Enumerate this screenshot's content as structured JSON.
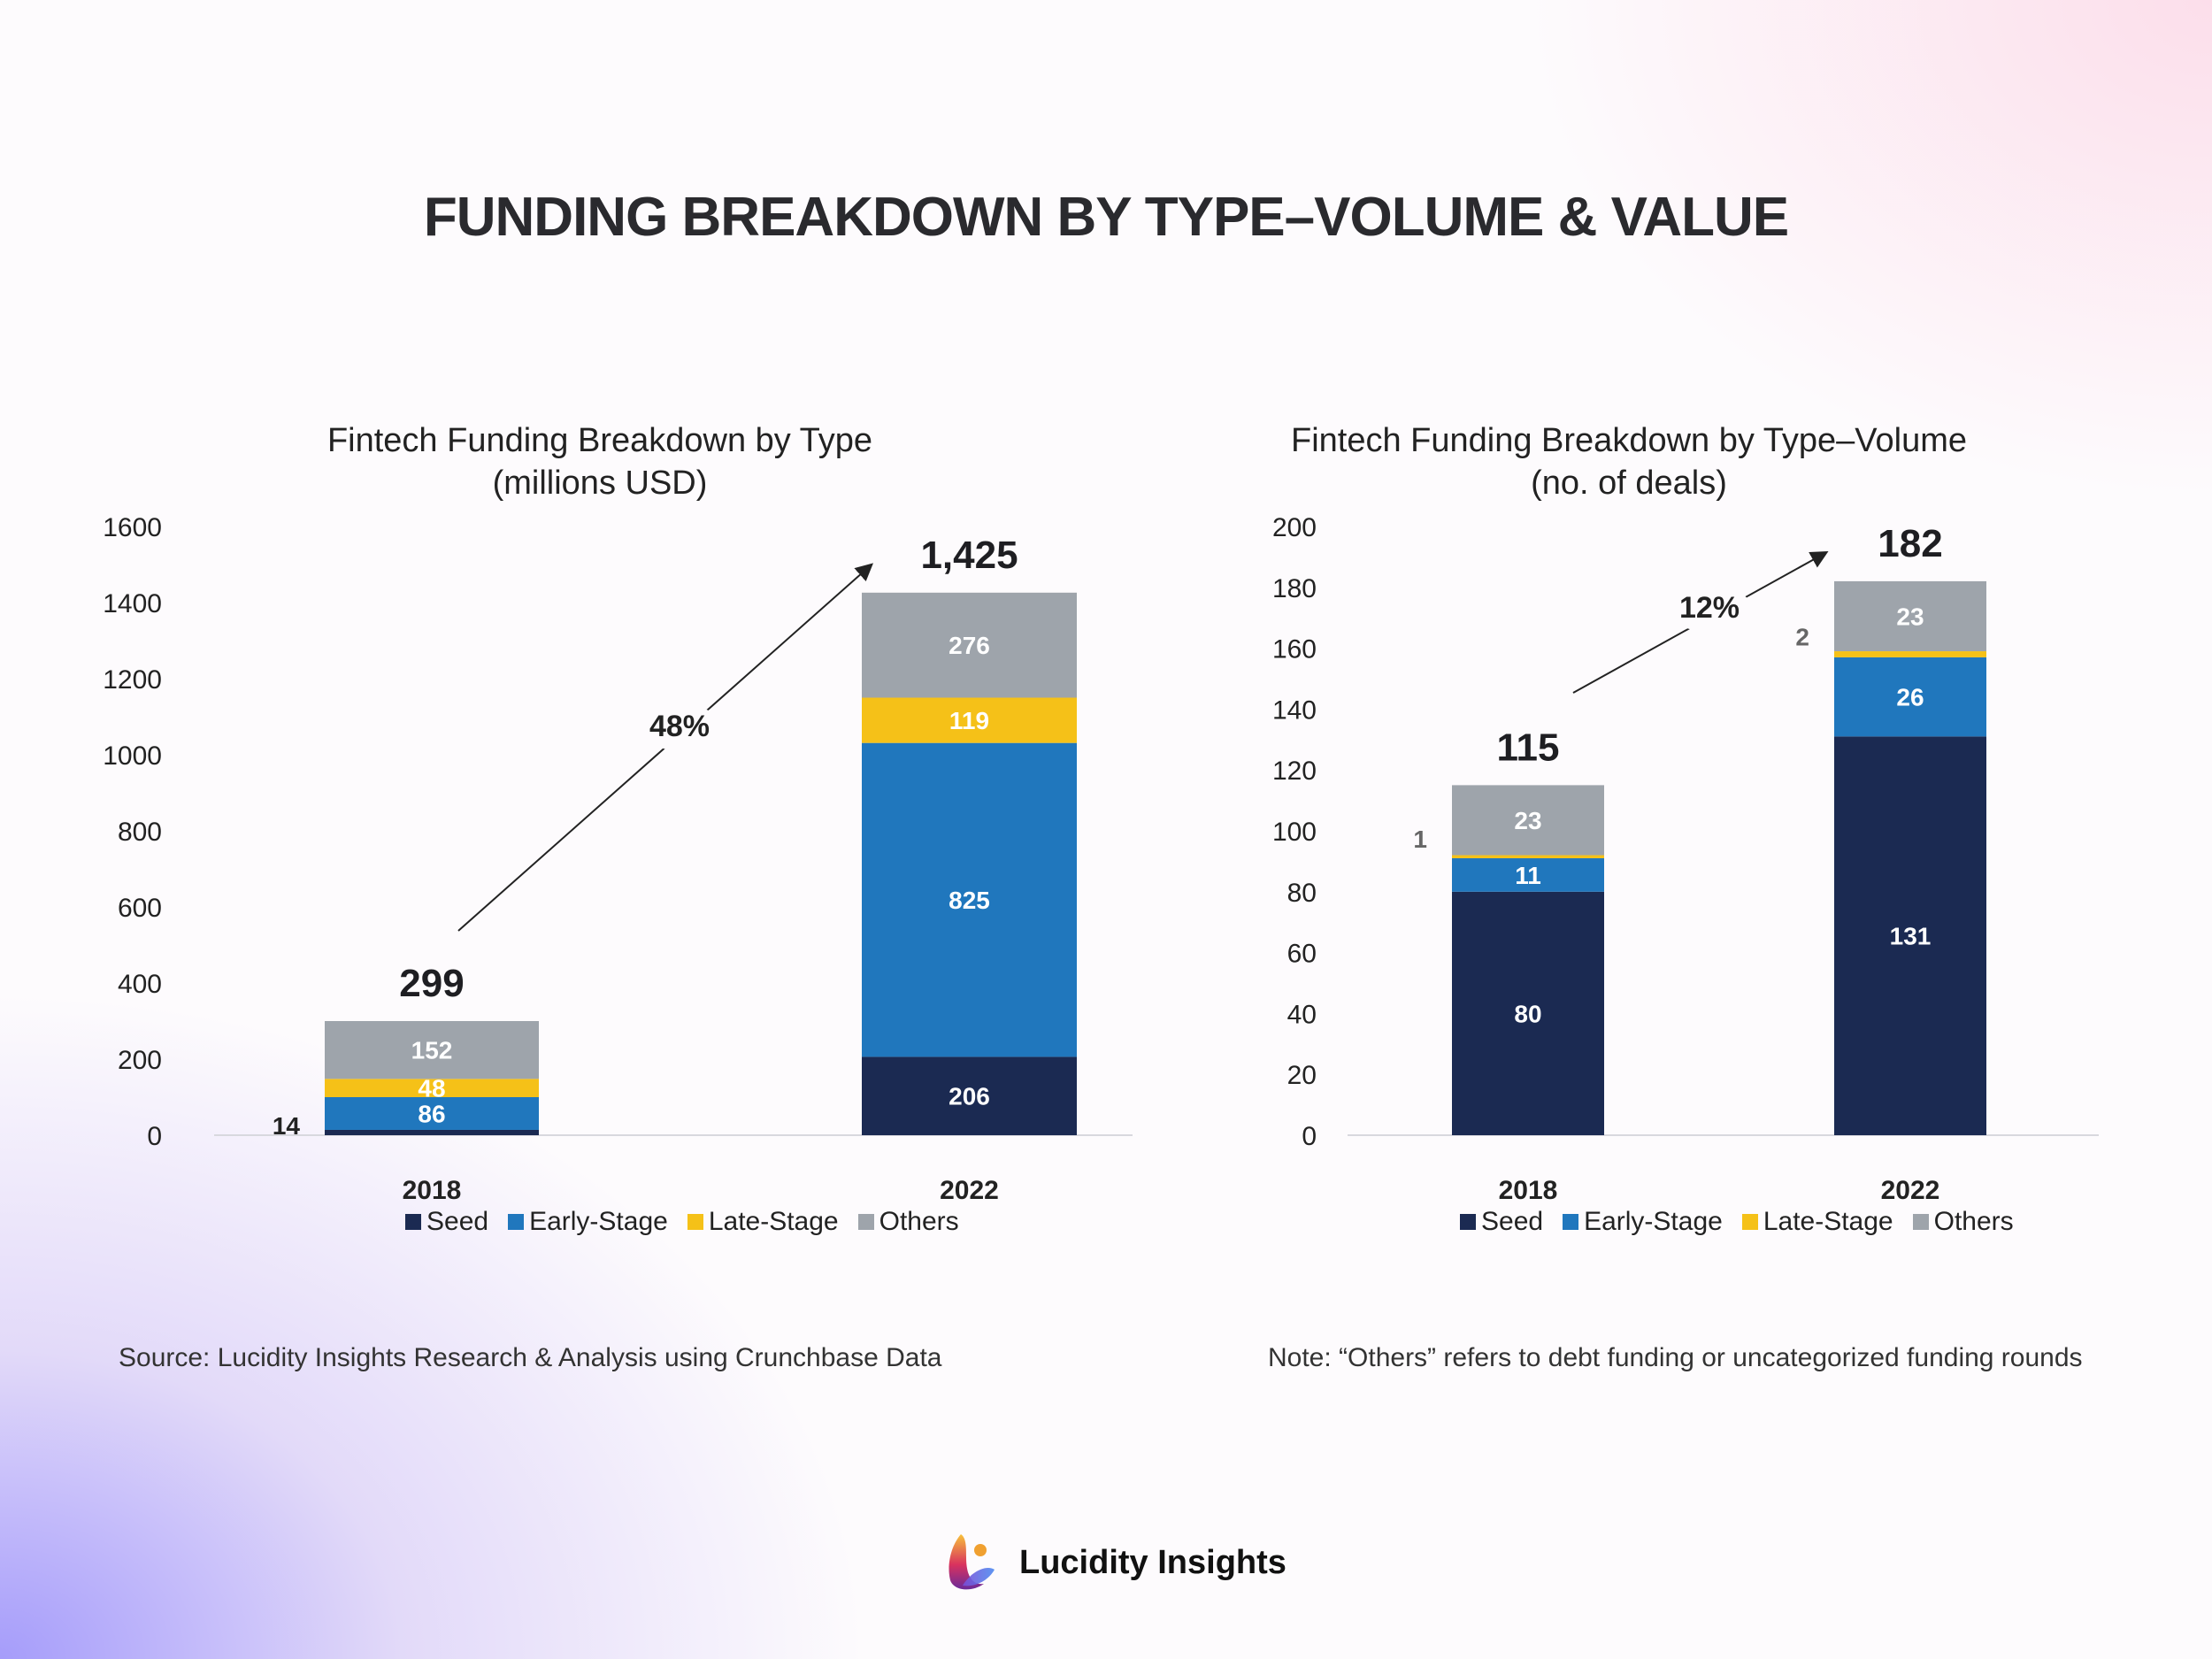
{
  "title": "FUNDING BREAKDOWN BY TYPE–VOLUME & VALUE",
  "colors": {
    "Seed": "#1b2a52",
    "Early-Stage": "#2077bd",
    "Late-Stage": "#f5c118",
    "Others": "#9ea4ab"
  },
  "chart_data": [
    {
      "type": "bar",
      "stacked": true,
      "title": "Fintech Funding Breakdown by Type",
      "subtitle": "(millions USD)",
      "categories": [
        "2018",
        "2022"
      ],
      "ylim": [
        0,
        1600
      ],
      "yticks": [
        "0",
        "200",
        "400",
        "600",
        "800",
        "1000",
        "1200",
        "1400",
        "1600"
      ],
      "series": [
        {
          "name": "Seed",
          "values": [
            14,
            206
          ]
        },
        {
          "name": "Early-Stage",
          "values": [
            86,
            825
          ]
        },
        {
          "name": "Late-Stage",
          "values": [
            48,
            119
          ]
        },
        {
          "name": "Others",
          "values": [
            152,
            276
          ]
        }
      ],
      "totals": [
        "299",
        "1,425"
      ],
      "growth_label": "48%",
      "legend": [
        "Seed",
        "Early-Stage",
        "Late-Stage",
        "Others"
      ],
      "legend_position": "bottom",
      "grid": false
    },
    {
      "type": "bar",
      "stacked": true,
      "title": "Fintech Funding Breakdown by Type–Volume",
      "subtitle": "(no. of deals)",
      "categories": [
        "2018",
        "2022"
      ],
      "ylim": [
        0,
        200
      ],
      "yticks": [
        "0",
        "20",
        "40",
        "60",
        "80",
        "100",
        "120",
        "140",
        "160",
        "180",
        "200"
      ],
      "series": [
        {
          "name": "Seed",
          "values": [
            80,
            131
          ]
        },
        {
          "name": "Early-Stage",
          "values": [
            11,
            26
          ]
        },
        {
          "name": "Late-Stage",
          "values": [
            1,
            2
          ]
        },
        {
          "name": "Others",
          "values": [
            23,
            23
          ]
        }
      ],
      "totals": [
        "115",
        "182"
      ],
      "growth_label": "12%",
      "legend": [
        "Seed",
        "Early-Stage",
        "Late-Stage",
        "Others"
      ],
      "legend_position": "bottom",
      "grid": false
    }
  ],
  "footer": {
    "source": "Source: Lucidity Insights Research & Analysis using Crunchbase Data",
    "note": "Note: “Others” refers to debt funding or uncategorized funding rounds"
  },
  "logo": {
    "text": "Lucidity Insights"
  }
}
